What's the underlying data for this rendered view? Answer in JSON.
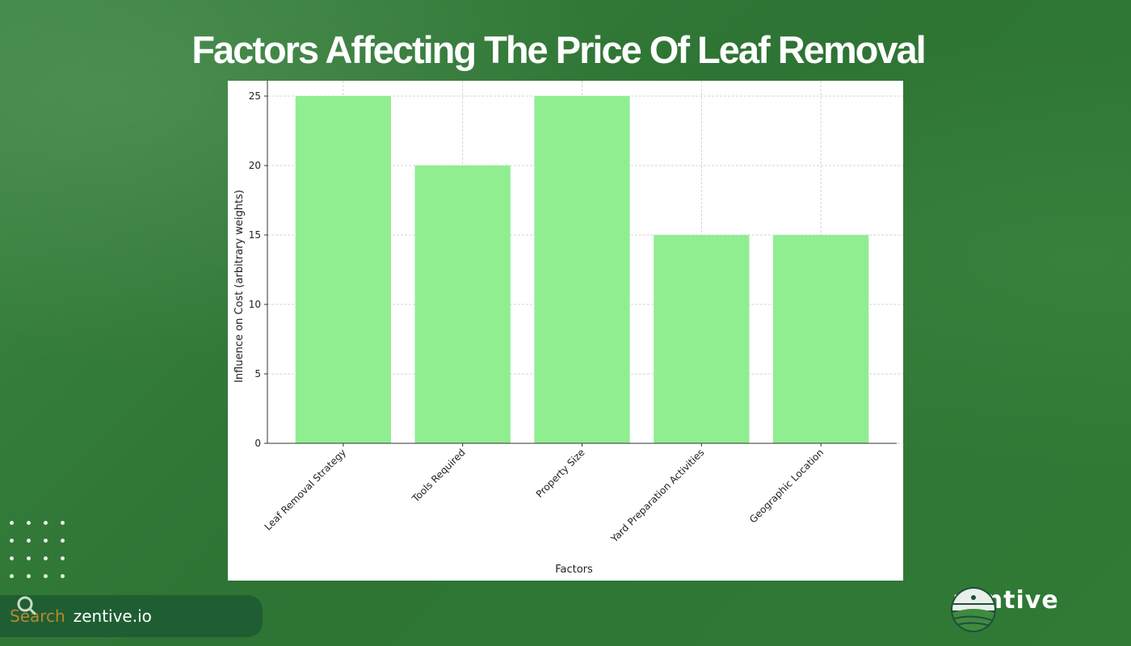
{
  "page": {
    "title": "Factors Affecting The Price Of Leaf Removal",
    "search_label": "Search",
    "search_site": "zentive.io",
    "brand": "zentive",
    "colors": {
      "background": "#2f7535",
      "bar": "#90ee90",
      "search_label": "#b78a2a"
    }
  },
  "chart_data": {
    "type": "bar",
    "title": "",
    "xlabel": "Factors",
    "ylabel": "Influence on Cost (arbitrary weights)",
    "categories": [
      "Leaf Removal Strategy",
      "Tools Required",
      "Property Size",
      "Yard Preparation Activities",
      "Geographic Location"
    ],
    "values": [
      25,
      20,
      25,
      15,
      15
    ],
    "ylim": [
      0,
      26.25
    ],
    "yticks": [
      0,
      5,
      10,
      15,
      20,
      25
    ],
    "grid": true,
    "bar_color": "#90ee90"
  }
}
